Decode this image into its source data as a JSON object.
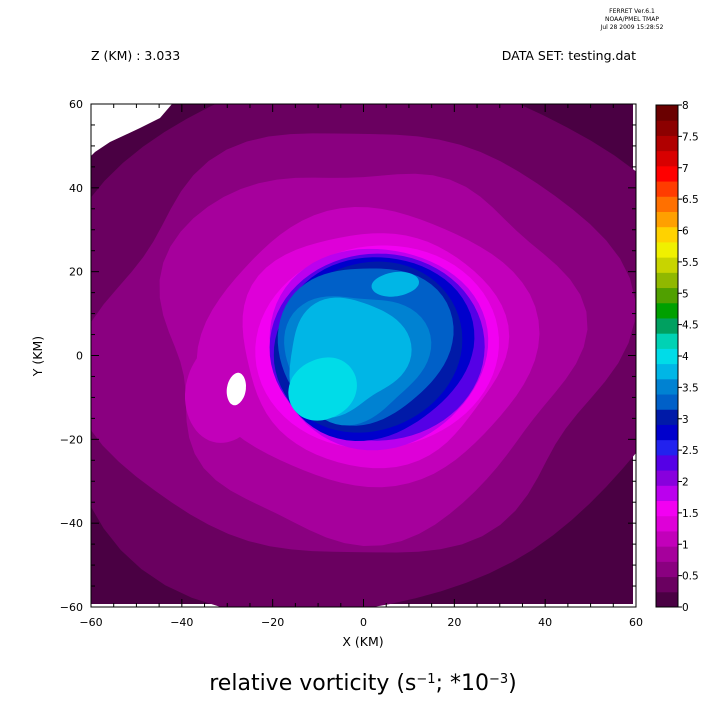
{
  "header": {
    "ferret_line1": "FERRET Ver.6.1",
    "ferret_line2": "NOAA/PMEL TMAP",
    "ferret_line3": "Jul 28 2009 15:28:52",
    "z_label": "Z (KM) : 3.033",
    "dataset_label": "DATA SET: testing.dat"
  },
  "chart_data": {
    "type": "heatmap",
    "title": "relative vorticity (s⁻¹; *10⁻³)",
    "title_parts": {
      "a": "relative vorticity (s",
      "b": "−1",
      "c": "; *10",
      "d": "−3",
      "e": ")"
    },
    "xlabel": "X (KM)",
    "ylabel": "Y (KM)",
    "xlim": [
      -60,
      60
    ],
    "ylim": [
      -60,
      60
    ],
    "x_ticks": [
      -60,
      -40,
      -20,
      0,
      20,
      40,
      60
    ],
    "y_ticks": [
      -60,
      -40,
      -20,
      0,
      20,
      40,
      60
    ],
    "x_tick_labels": [
      "−60",
      "−40",
      "−20",
      "0",
      "20",
      "40",
      "60"
    ],
    "y_tick_labels": [
      "−60",
      "−40",
      "−20",
      "0",
      "20",
      "40",
      "60"
    ],
    "colorbar": {
      "levels": [
        0,
        0.5,
        1,
        1.5,
        2,
        2.5,
        3,
        3.5,
        4,
        4.5,
        5,
        5.5,
        6,
        6.5,
        7,
        7.5,
        8
      ],
      "labels": [
        "0",
        "0.5",
        "1",
        "1.5",
        "2",
        "2.5",
        "3",
        "3.5",
        "4",
        "4.5",
        "5",
        "5.5",
        "6",
        "6.5",
        "7",
        "7.5",
        "8"
      ],
      "colors": [
        "#4a0043",
        "#6a0060",
        "#8a0080",
        "#a6009c",
        "#c200ba",
        "#de00d8",
        "#f200f2",
        "#bb00ee",
        "#8800dd",
        "#5500e6",
        "#2222ee",
        "#0000cc",
        "#001aa8",
        "#0060c8",
        "#0082d2",
        "#00b6e6",
        "#00dce8",
        "#00d2b4",
        "#00a060",
        "#00a000",
        "#50a000",
        "#90b800",
        "#c8d400",
        "#f0f000",
        "#ffd200",
        "#ffa000",
        "#ff7000",
        "#ff3c00",
        "#ff0000",
        "#d80000",
        "#b00000",
        "#8c0000",
        "#6a0000"
      ]
    },
    "field_description": "vortex centered near (0, 2) km; core value about 3.5–4 s⁻¹·10⁻³, ring ~2–3 at radius ~25 km, surrounding field 0.5–1.5, outer edges 0–0.5"
  }
}
